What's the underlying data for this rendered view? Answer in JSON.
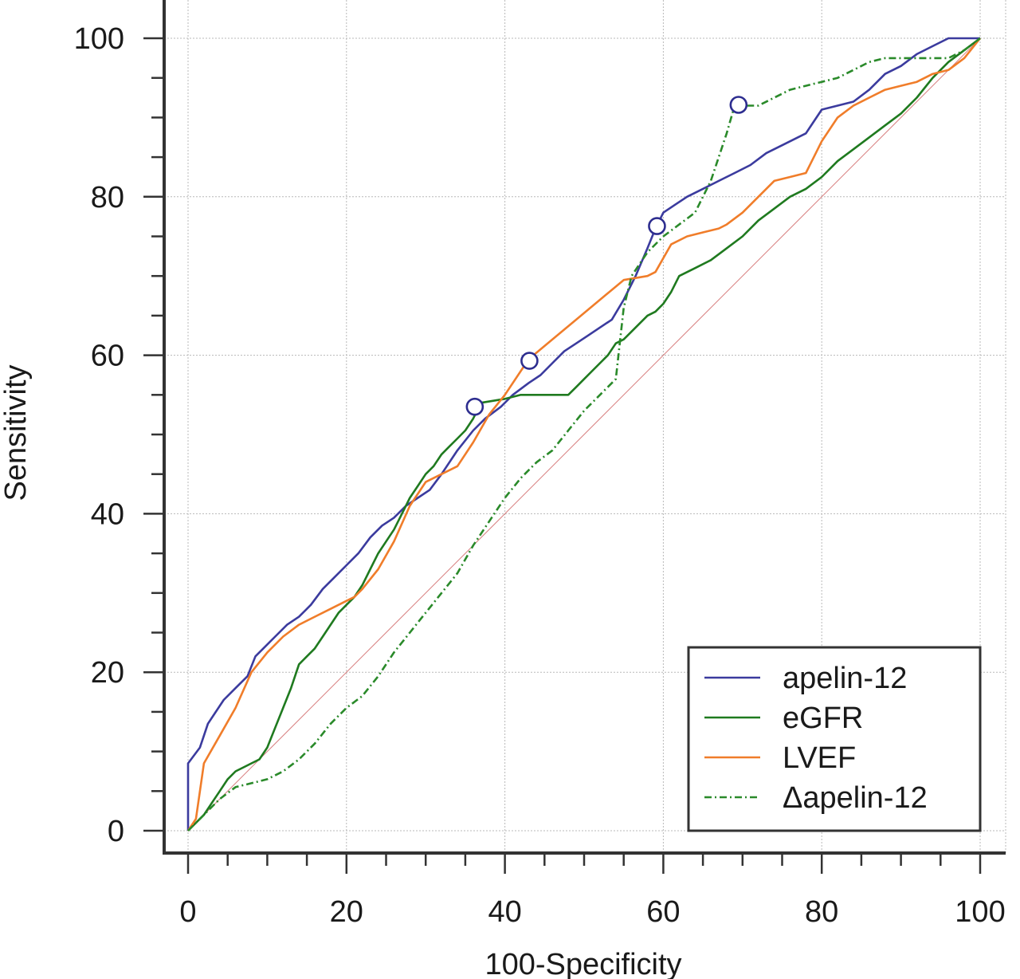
{
  "chart_data": {
    "type": "line",
    "title": "",
    "xlabel": "100-Specificity",
    "ylabel": "Sensitivity",
    "xlim": [
      0,
      100
    ],
    "ylim": [
      0,
      100
    ],
    "xticks": [
      "0",
      "20",
      "40",
      "60",
      "80",
      "100"
    ],
    "yticks": [
      "0",
      "20",
      "40",
      "60",
      "80",
      "100"
    ],
    "grid": true,
    "legend_position": "bottom-right",
    "reference_line": {
      "x": [
        0,
        100
      ],
      "y": [
        0,
        100
      ],
      "color": "#d88080"
    },
    "series": [
      {
        "name": "apelin-12",
        "color": "#3b3b9e",
        "style": "solid",
        "x": [
          0,
          0,
          1.5,
          2.5,
          3.5,
          4.5,
          6,
          7.5,
          8.5,
          9.5,
          11,
          12.5,
          14,
          15.5,
          17,
          18.5,
          20,
          21.5,
          23,
          24.5,
          26,
          27.5,
          29,
          30.5,
          32,
          34,
          36,
          37.5,
          39.5,
          41,
          43,
          44.5,
          46,
          47.5,
          49,
          50.5,
          52,
          53.5,
          55,
          56.5,
          58,
          59,
          60,
          61.5,
          63,
          65,
          67,
          69,
          71,
          73,
          75,
          78,
          80,
          82,
          84,
          86,
          88,
          90,
          92,
          94,
          96,
          98,
          100
        ],
        "y": [
          0,
          8.5,
          10.5,
          13.5,
          15,
          16.5,
          18,
          19.5,
          22,
          23,
          24.5,
          26,
          27,
          28.5,
          30.5,
          32,
          33.5,
          35,
          37,
          38.5,
          39.5,
          41,
          42,
          43,
          45,
          48,
          50.5,
          52,
          53.5,
          55,
          56.5,
          57.5,
          59,
          60.5,
          61.5,
          62.5,
          63.5,
          64.5,
          67,
          70,
          73.5,
          76,
          78,
          79,
          80,
          81,
          82,
          83,
          84,
          85.5,
          86.5,
          88,
          91,
          91.5,
          92,
          93.5,
          95.5,
          96.5,
          98,
          99,
          100,
          100,
          100
        ]
      },
      {
        "name": "eGFR",
        "color": "#1f7a1f",
        "style": "solid",
        "x": [
          0,
          1,
          2,
          3,
          4,
          5,
          6,
          7,
          8,
          9,
          10,
          11,
          12,
          13,
          14,
          15,
          16,
          17,
          18,
          19,
          20,
          21,
          22,
          23,
          24,
          25,
          26,
          27,
          28,
          29,
          30,
          31,
          32,
          33,
          34,
          35,
          36,
          37,
          40,
          42,
          44,
          46,
          48,
          49,
          50,
          51,
          52,
          53,
          54,
          55,
          56,
          57,
          58,
          59,
          60,
          61,
          62,
          64,
          66,
          68,
          70,
          72,
          74,
          76,
          78,
          80,
          82,
          84,
          86,
          88,
          90,
          92,
          94,
          96,
          98,
          100
        ],
        "y": [
          0,
          1,
          2,
          3.5,
          5,
          6.5,
          7.5,
          8,
          8.5,
          9,
          10.5,
          13,
          15.5,
          18,
          21,
          22,
          23,
          24.5,
          26,
          27.5,
          28.5,
          29.5,
          31,
          33,
          35,
          36.5,
          38,
          40,
          42,
          43.5,
          45,
          46,
          47.5,
          48.5,
          49.5,
          50.5,
          52,
          54,
          54.5,
          55,
          55,
          55,
          55,
          56,
          57,
          58,
          59,
          60,
          61.5,
          62,
          63,
          64,
          65,
          65.5,
          66.5,
          68,
          70,
          71,
          72,
          73.5,
          75,
          77,
          78.5,
          80,
          81,
          82.5,
          84.5,
          86,
          87.5,
          89,
          90.5,
          92.5,
          95,
          97,
          98.5,
          100
        ]
      },
      {
        "name": "LVEF",
        "color": "#f07d2a",
        "style": "solid",
        "x": [
          0,
          1,
          2,
          4,
          6,
          8,
          10,
          12,
          14,
          16,
          18,
          20,
          21,
          22,
          24,
          26,
          28,
          30,
          32,
          34,
          36,
          38,
          40,
          43,
          46,
          49,
          52,
          55,
          58,
          59,
          61,
          63,
          65,
          67,
          68,
          70,
          72,
          74,
          76,
          78,
          80,
          82,
          84,
          86,
          88,
          90,
          92,
          94,
          96,
          98,
          100
        ],
        "y": [
          0,
          1.5,
          8.5,
          12,
          15.5,
          20,
          22.5,
          24.5,
          26,
          27,
          28,
          29,
          29.5,
          30.5,
          33,
          36.5,
          41,
          44,
          45,
          46,
          49,
          52.5,
          55,
          59.5,
          62,
          64.5,
          67,
          69.5,
          70,
          70.5,
          74,
          75,
          75.5,
          76,
          76.5,
          78,
          80,
          82,
          82.5,
          83,
          87,
          90,
          91.5,
          92.5,
          93.5,
          94,
          94.5,
          95.5,
          96,
          97.5,
          100
        ]
      },
      {
        "name": "Δapelin-12",
        "color": "#2a8a2a",
        "style": "dashdot",
        "x": [
          0,
          2,
          4,
          6,
          8,
          10,
          12,
          14,
          16,
          18,
          20,
          22,
          24,
          26,
          28,
          30,
          32,
          34,
          36,
          38,
          40,
          42,
          44,
          46,
          48,
          50,
          52,
          54,
          55,
          56,
          58,
          60,
          62,
          64,
          66,
          68,
          69,
          70,
          72,
          74,
          76,
          78,
          80,
          82,
          84,
          86,
          88,
          90,
          92,
          94,
          96,
          98,
          100
        ],
        "y": [
          0,
          2,
          4,
          5.5,
          6,
          6.5,
          7.5,
          9,
          11,
          13.5,
          15.5,
          17,
          19.5,
          22.5,
          25,
          27.5,
          30,
          32.5,
          36,
          39,
          42,
          44.5,
          46.5,
          48,
          50.5,
          53,
          55,
          57,
          66,
          70,
          73,
          75,
          76.5,
          78,
          82,
          88,
          91.5,
          91.5,
          91.5,
          92.5,
          93.5,
          94,
          94.5,
          95,
          96,
          97,
          97.5,
          97.5,
          97.5,
          97.5,
          97.5,
          98.5,
          100
        ]
      }
    ],
    "markers": [
      {
        "series": "apelin-12",
        "x": 36.2,
        "y": 53.5
      },
      {
        "series": "apelin-12",
        "x": 43.1,
        "y": 59.3
      },
      {
        "series": "apelin-12",
        "x": 59.2,
        "y": 76.3
      },
      {
        "series": "Δapelin-12",
        "x": 69.5,
        "y": 91.6
      }
    ],
    "colors": {
      "axis": "#333333",
      "grid": "#b8b8b8",
      "marker": "#2d2d8f",
      "reference": "#d88080"
    }
  }
}
